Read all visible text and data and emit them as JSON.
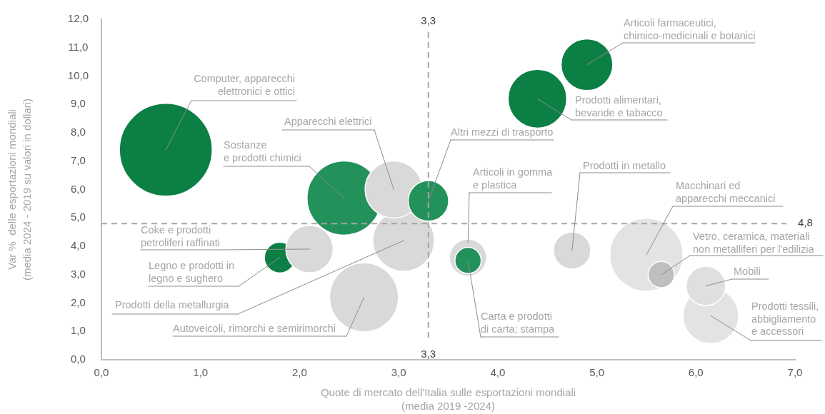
{
  "chart_data": {
    "type": "bubble",
    "xlabel": "Quote di mercato dell'Italia sulle esportazioni mondiali (media 2019 -2024)",
    "ylabel": "Var %  delle esportazioni mondiali (media 2024 - 2019 su valori in dollari)",
    "xlim": [
      0,
      7
    ],
    "xticks": [
      {
        "value": 0,
        "label": "0,0"
      },
      {
        "value": 1,
        "label": "1,0"
      },
      {
        "value": 2,
        "label": "2,0"
      },
      {
        "value": 3,
        "label": "3,0"
      },
      {
        "value": 4,
        "label": "4,0"
      },
      {
        "value": 5,
        "label": "5,0"
      },
      {
        "value": 6,
        "label": "6,0"
      },
      {
        "value": 7,
        "label": "7,0"
      }
    ],
    "ylim": [
      0,
      12
    ],
    "yticks": [
      {
        "value": 0,
        "label": "0,0"
      },
      {
        "value": 1,
        "label": "1,0"
      },
      {
        "value": 2,
        "label": "2,0"
      },
      {
        "value": 3,
        "label": "3,0"
      },
      {
        "value": 4,
        "label": "4,0"
      },
      {
        "value": 5,
        "label": "5,0"
      },
      {
        "value": 6,
        "label": "6,0"
      },
      {
        "value": 7,
        "label": "7,0"
      },
      {
        "value": 8,
        "label": "8,0"
      },
      {
        "value": 9,
        "label": "9,0"
      },
      {
        "value": 10,
        "label": "10,0"
      },
      {
        "value": 11,
        "label": "11,0"
      },
      {
        "value": 12,
        "label": "12,0"
      }
    ],
    "grid": false,
    "legend": false,
    "ref_lines": [
      {
        "axis": "x",
        "value": 3.3,
        "label": "3,3",
        "color": "#a6a6a6",
        "line_style": "dashed"
      },
      {
        "axis": "y",
        "value": 4.8,
        "label": "4,8",
        "color": "#a6a6a6",
        "line_style": "dashed"
      }
    ],
    "series": [
      {
        "name": "Computer, apparecchi elettronici e ottici",
        "color": "#0c8044",
        "x": [
          0.65
        ],
        "values": [
          7.4
        ],
        "sizes": [
          1
        ]
      },
      {
        "name": "Sostanze e prodotti chimici",
        "color": "#22915a",
        "x": [
          2.45
        ],
        "values": [
          5.7
        ],
        "sizes": [
          0.64
        ]
      },
      {
        "name": "Prodotti della metallurgia",
        "color": "#d9d9d9",
        "x": [
          3.05
        ],
        "values": [
          4.2
        ],
        "sizes": [
          0.44
        ]
      },
      {
        "name": "Apparecchi elettrici",
        "color": "#d9d9d9",
        "x": [
          2.95
        ],
        "values": [
          6.0
        ],
        "sizes": [
          0.38
        ]
      },
      {
        "name": "Altri mezzi di trasporto",
        "color": "#22915a",
        "x": [
          3.3
        ],
        "values": [
          5.6
        ],
        "sizes": [
          0.19
        ]
      },
      {
        "name": "Legno e prodotti in legno e sughero",
        "color": "#0c8044",
        "x": [
          1.8
        ],
        "values": [
          3.6
        ],
        "sizes": [
          0.11
        ]
      },
      {
        "name": "Coke e prodotti petroliferi raffinati",
        "color": "#d9d9d9",
        "x": [
          2.1
        ],
        "values": [
          3.9
        ],
        "sizes": [
          0.26
        ]
      },
      {
        "name": "Autoveicoli, rimorchi e semirimorchi",
        "color": "#d9d9d9",
        "x": [
          2.65
        ],
        "values": [
          2.2
        ],
        "sizes": [
          0.55
        ]
      },
      {
        "name": "Articoli in gomma e plastica",
        "color": "#d9d9d9",
        "x": [
          3.7
        ],
        "values": [
          3.6
        ],
        "sizes": [
          0.16
        ]
      },
      {
        "name": "Carta e prodotti di carta; stampa",
        "color": "#22915a",
        "x": [
          3.7
        ],
        "values": [
          3.5
        ],
        "sizes": [
          0.08
        ]
      },
      {
        "name": "Articoli farmaceutici, chimico-medicinali e botanici",
        "color": "#0c8044",
        "x": [
          4.9
        ],
        "values": [
          10.4
        ],
        "sizes": [
          0.31
        ]
      },
      {
        "name": "Prodotti alimentari, bevande e tabacco",
        "color": "#0c8044",
        "x": [
          4.4
        ],
        "values": [
          9.2
        ],
        "sizes": [
          0.4
        ]
      },
      {
        "name": "Prodotti in metallo",
        "color": "#d9d9d9",
        "x": [
          4.75
        ],
        "values": [
          3.85
        ],
        "sizes": [
          0.16
        ]
      },
      {
        "name": "Macchinari ed apparecchi meccanici",
        "color": "#e3e3e3",
        "x": [
          5.5
        ],
        "values": [
          3.7
        ],
        "sizes": [
          0.62
        ]
      },
      {
        "name": "Vetro, ceramica, materiali non metalliferi per l'edilizia",
        "color": "#bfbfbf",
        "x": [
          5.65
        ],
        "values": [
          3.0
        ],
        "sizes": [
          0.08
        ]
      },
      {
        "name": "Prodotti tessili, abbigliamento e accessori",
        "color": "#e3e3e3",
        "x": [
          6.15
        ],
        "values": [
          1.55
        ],
        "sizes": [
          0.36
        ]
      },
      {
        "name": "Mobili",
        "color": "#dfdfdf",
        "x": [
          6.1
        ],
        "values": [
          2.6
        ],
        "sizes": [
          0.18
        ]
      }
    ]
  }
}
